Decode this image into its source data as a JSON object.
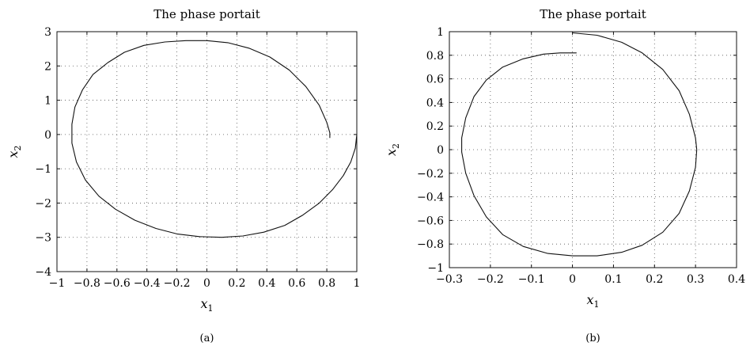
{
  "chart_data": [
    {
      "type": "line",
      "panel_label": "(a)",
      "title": "The phase portait",
      "xlabel": "x",
      "xlabel_sub": "1",
      "ylabel": "x",
      "ylabel_sub": "2",
      "xlim": [
        -1,
        1
      ],
      "ylim": [
        -4,
        3
      ],
      "xticks": [
        -1,
        -0.8,
        -0.6,
        -0.4,
        -0.2,
        0,
        0.2,
        0.4,
        0.6,
        0.8,
        1
      ],
      "xtick_labels": [
        "−1",
        "−0.8",
        "−0.6",
        "−0.4",
        "−0.2",
        "0",
        "0.2",
        "0.4",
        "0.6",
        "0.8",
        "1"
      ],
      "yticks": [
        -4,
        -3,
        -2,
        -1,
        0,
        1,
        2,
        3
      ],
      "ytick_labels": [
        "−4",
        "−3",
        "−2",
        "−1",
        "0",
        "1",
        "2",
        "3"
      ],
      "grid": true,
      "series": [
        {
          "x": [
            1.0,
            0.99,
            0.96,
            0.91,
            0.84,
            0.75,
            0.64,
            0.52,
            0.38,
            0.24,
            0.1,
            -0.05,
            -0.2,
            -0.34,
            -0.48,
            -0.61,
            -0.72,
            -0.81,
            -0.87,
            -0.9,
            -0.9,
            -0.88,
            -0.83,
            -0.76,
            -0.66,
            -0.55,
            -0.42,
            -0.28,
            -0.14,
            0.0,
            0.14,
            0.28,
            0.42,
            0.55,
            0.66,
            0.75,
            0.8,
            0.82,
            0.82
          ],
          "y": [
            0.0,
            -0.4,
            -0.8,
            -1.2,
            -1.6,
            -2.0,
            -2.35,
            -2.65,
            -2.85,
            -2.96,
            -3.0,
            -2.98,
            -2.9,
            -2.74,
            -2.5,
            -2.18,
            -1.8,
            -1.33,
            -0.8,
            -0.25,
            0.3,
            0.8,
            1.3,
            1.75,
            2.1,
            2.4,
            2.6,
            2.7,
            2.74,
            2.74,
            2.68,
            2.52,
            2.26,
            1.88,
            1.4,
            0.85,
            0.35,
            0.05,
            -0.1
          ]
        }
      ]
    },
    {
      "type": "line",
      "panel_label": "(b)",
      "title": "The phase portait",
      "xlabel": "x",
      "xlabel_sub": "1",
      "ylabel": "x",
      "ylabel_sub": "2",
      "xlim": [
        -0.3,
        0.4
      ],
      "ylim": [
        -1,
        1
      ],
      "xticks": [
        -0.3,
        -0.2,
        -0.1,
        0,
        0.1,
        0.2,
        0.3,
        0.4
      ],
      "xtick_labels": [
        "−0.3",
        "−0.2",
        "−0.1",
        "0",
        "0.1",
        "0.2",
        "0.3",
        "0.4"
      ],
      "yticks": [
        -1,
        -0.8,
        -0.6,
        -0.4,
        -0.2,
        0,
        0.2,
        0.4,
        0.6,
        0.8,
        1
      ],
      "ytick_labels": [
        "−1",
        "−0.8",
        "−0.6",
        "−0.4",
        "−0.2",
        "0",
        "0.2",
        "0.4",
        "0.6",
        "0.8",
        "1"
      ],
      "grid": true,
      "series": [
        {
          "x": [
            0.0,
            0.06,
            0.12,
            0.17,
            0.22,
            0.26,
            0.285,
            0.3,
            0.303,
            0.3,
            0.285,
            0.26,
            0.22,
            0.17,
            0.12,
            0.06,
            0.0,
            -0.06,
            -0.12,
            -0.17,
            -0.21,
            -0.24,
            -0.26,
            -0.27,
            -0.27,
            -0.26,
            -0.24,
            -0.21,
            -0.17,
            -0.12,
            -0.07,
            -0.03,
            -0.01,
            0.0,
            0.01
          ],
          "y": [
            0.99,
            0.97,
            0.91,
            0.82,
            0.68,
            0.5,
            0.3,
            0.1,
            0.0,
            -0.15,
            -0.35,
            -0.54,
            -0.7,
            -0.81,
            -0.87,
            -0.9,
            -0.9,
            -0.88,
            -0.82,
            -0.72,
            -0.57,
            -0.39,
            -0.2,
            -0.02,
            0.1,
            0.27,
            0.45,
            0.59,
            0.7,
            0.77,
            0.81,
            0.82,
            0.82,
            0.82,
            0.82
          ]
        }
      ]
    }
  ]
}
